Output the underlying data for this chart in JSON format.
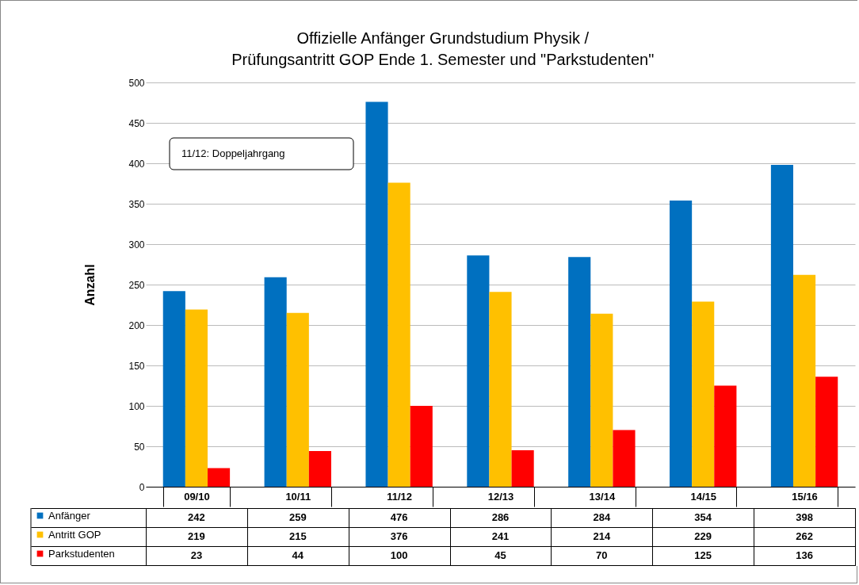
{
  "chart_data": {
    "type": "bar",
    "title": "Offizielle Anfänger Grundstudium Physik /\nPrüfungsantritt GOP Ende 1. Semester  und \"Parkstudenten\"",
    "ylabel": "Anzahl",
    "categories": [
      "09/10",
      "10/11",
      "11/12",
      "12/13",
      "13/14",
      "14/15",
      "15/16"
    ],
    "series": [
      {
        "name": "Anfänger",
        "color": "#0070c0",
        "values": [
          242,
          259,
          476,
          286,
          284,
          354,
          398
        ]
      },
      {
        "name": "Antritt GOP",
        "color": "#ffc000",
        "values": [
          219,
          215,
          376,
          241,
          214,
          229,
          262
        ]
      },
      {
        "name": "Parkstudenten",
        "color": "#ff0000",
        "values": [
          23,
          44,
          100,
          45,
          70,
          125,
          136
        ]
      }
    ],
    "ylim": [
      0,
      500
    ],
    "yticks": [
      0,
      50,
      100,
      150,
      200,
      250,
      300,
      350,
      400,
      450,
      500
    ],
    "grid": "y",
    "legend": "bottom left",
    "data_labels": true,
    "annotations": [
      "11/12: Doppeljahrgang"
    ]
  }
}
